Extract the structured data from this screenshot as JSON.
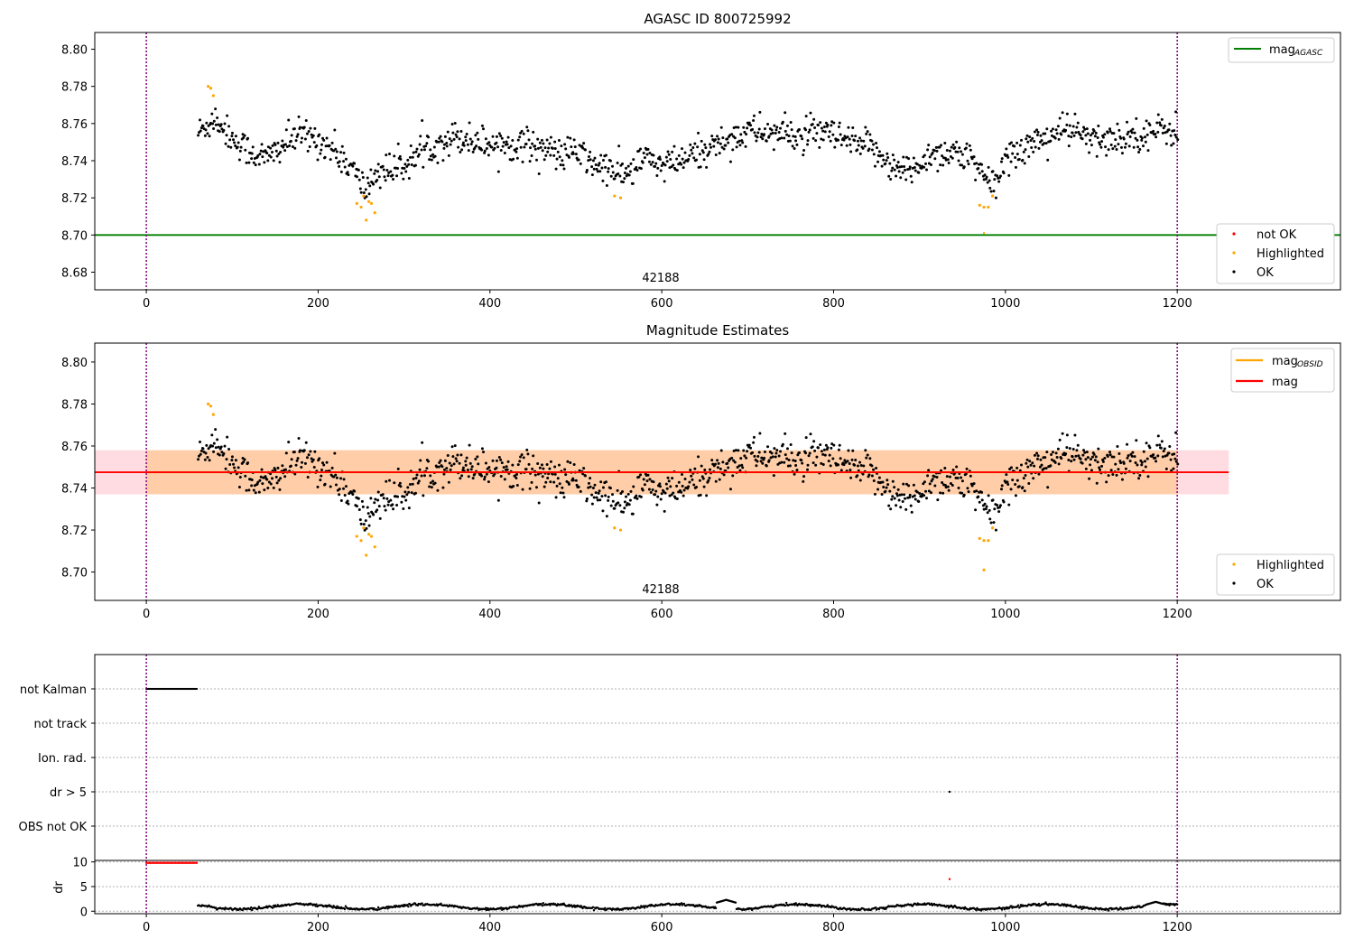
{
  "chart_data": [
    {
      "type": "scatter",
      "title": "AGASC ID 800725992",
      "xlabel": "",
      "ylabel": "",
      "xlim": [
        -60,
        1390
      ],
      "ylim": [
        8.6705,
        8.809
      ],
      "xticks": [
        0,
        200,
        400,
        600,
        800,
        1000,
        1200
      ],
      "xtick_labels": [
        "0",
        "200",
        "400",
        "600",
        "800",
        "1000",
        "1200"
      ],
      "yticks": [
        8.68,
        8.7,
        8.72,
        8.74,
        8.76,
        8.78,
        8.8
      ],
      "ytick_labels": [
        "8.68",
        "8.70",
        "8.72",
        "8.74",
        "8.76",
        "8.78",
        "8.80"
      ],
      "obsid_label": "42188",
      "obsid_label_x": 600,
      "vertical_lines_x": [
        0,
        1200
      ],
      "mag_agasc": 8.7,
      "legend_lines": [
        {
          "label": "mag",
          "sub": "AGASC",
          "color": "#008000"
        }
      ],
      "legend_points": [
        {
          "label": "not OK",
          "color": "#ff0000"
        },
        {
          "label": "Highlighted",
          "color": "#ffa500"
        },
        {
          "label": "OK",
          "color": "#000000"
        }
      ],
      "legend_placement": "upper right, lower right",
      "ok_series": {
        "name": "OK",
        "x_range": [
          60,
          1200
        ],
        "trend": [
          [
            60,
            8.755
          ],
          [
            80,
            8.763
          ],
          [
            100,
            8.752
          ],
          [
            120,
            8.745
          ],
          [
            140,
            8.741
          ],
          [
            160,
            8.749
          ],
          [
            180,
            8.754
          ],
          [
            200,
            8.751
          ],
          [
            220,
            8.745
          ],
          [
            240,
            8.735
          ],
          [
            255,
            8.724
          ],
          [
            270,
            8.735
          ],
          [
            290,
            8.735
          ],
          [
            310,
            8.741
          ],
          [
            330,
            8.748
          ],
          [
            360,
            8.753
          ],
          [
            400,
            8.749
          ],
          [
            450,
            8.749
          ],
          [
            480,
            8.743
          ],
          [
            500,
            8.745
          ],
          [
            520,
            8.738
          ],
          [
            540,
            8.735
          ],
          [
            560,
            8.732
          ],
          [
            580,
            8.742
          ],
          [
            600,
            8.737
          ],
          [
            620,
            8.739
          ],
          [
            650,
            8.746
          ],
          [
            680,
            8.752
          ],
          [
            700,
            8.756
          ],
          [
            730,
            8.755
          ],
          [
            760,
            8.753
          ],
          [
            790,
            8.755
          ],
          [
            820,
            8.749
          ],
          [
            850,
            8.746
          ],
          [
            870,
            8.736
          ],
          [
            890,
            8.734
          ],
          [
            910,
            8.743
          ],
          [
            940,
            8.745
          ],
          [
            960,
            8.74
          ],
          [
            975,
            8.73
          ],
          [
            990,
            8.728
          ],
          [
            1000,
            8.742
          ],
          [
            1030,
            8.749
          ],
          [
            1060,
            8.755
          ],
          [
            1080,
            8.757
          ],
          [
            1100,
            8.75
          ],
          [
            1130,
            8.752
          ],
          [
            1160,
            8.755
          ],
          [
            1200,
            8.757
          ]
        ],
        "scatter_sigma": 0.0055
      },
      "highlighted_points": [
        [
          72,
          8.78
        ],
        [
          75,
          8.779
        ],
        [
          78,
          8.775
        ],
        [
          245,
          8.717
        ],
        [
          250,
          8.715
        ],
        [
          253,
          8.721
        ],
        [
          256,
          8.708
        ],
        [
          259,
          8.718
        ],
        [
          262,
          8.717
        ],
        [
          266,
          8.712
        ],
        [
          545,
          8.721
        ],
        [
          552,
          8.72
        ],
        [
          970,
          8.716
        ],
        [
          975,
          8.715
        ],
        [
          980,
          8.715
        ],
        [
          985,
          8.721
        ]
      ],
      "not_ok_points": [
        [
          975,
          8.701
        ]
      ]
    },
    {
      "type": "scatter",
      "title": "Magnitude Estimates",
      "xlabel": "",
      "ylabel": "",
      "xlim": [
        -60,
        1390
      ],
      "ylim": [
        8.6865,
        8.809
      ],
      "xticks": [
        0,
        200,
        400,
        600,
        800,
        1000,
        1200
      ],
      "xtick_labels": [
        "0",
        "200",
        "400",
        "600",
        "800",
        "1000",
        "1200"
      ],
      "yticks": [
        8.7,
        8.72,
        8.74,
        8.76,
        8.78,
        8.8
      ],
      "ytick_labels": [
        "8.70",
        "8.72",
        "8.74",
        "8.76",
        "8.78",
        "8.80"
      ],
      "obsid_label": "42188",
      "obsid_label_x": 600,
      "vertical_lines_x": [
        0,
        1200
      ],
      "mag": 8.7475,
      "mag_obsid": 8.7475,
      "mag_band": [
        8.737,
        8.758
      ],
      "mag_obsid_band": [
        8.737,
        8.758
      ],
      "mag_band_x": [
        -60,
        1260
      ],
      "mag_obsid_band_x": [
        0,
        1200
      ],
      "legend_lines": [
        {
          "label": "mag",
          "sub": "OBSID",
          "color": "#ffa500"
        },
        {
          "label": "mag",
          "sub": "",
          "color": "#ff0000"
        }
      ],
      "legend_points": [
        {
          "label": "Highlighted",
          "color": "#ffa500"
        },
        {
          "label": "OK",
          "color": "#000000"
        }
      ],
      "legend_placement": "upper right, lower right",
      "same_points_as_first_panel": true
    },
    {
      "type": "scatter",
      "title": "",
      "xlim": [
        -60,
        1390
      ],
      "categories": [
        "not Kalman",
        "not track",
        "Ion. rad.",
        "dr > 5",
        "OBS not OK"
      ],
      "flags": {
        "not Kalman": {
          "x_range": [
            0,
            60
          ]
        },
        "not track": {
          "x_range": []
        },
        "Ion. rad.": {
          "x_range": []
        },
        "dr > 5": {
          "x_points": [
            935
          ]
        },
        "OBS not OK": {
          "x_range": []
        }
      },
      "vertical_lines_x": [
        0,
        1200
      ]
    },
    {
      "type": "scatter",
      "title": "",
      "xlabel": "",
      "ylabel": "dr",
      "xlim": [
        -60,
        1390
      ],
      "ylim": [
        -0.5,
        10.3
      ],
      "yticks": [
        0,
        5,
        10
      ],
      "ytick_labels": [
        "0",
        "5",
        "10"
      ],
      "xticks": [
        0,
        200,
        400,
        600,
        800,
        1000,
        1200
      ],
      "xtick_labels": [
        "0",
        "200",
        "400",
        "600",
        "800",
        "1000",
        "1200"
      ],
      "vertical_lines_x": [
        0,
        1200
      ],
      "red_points": {
        "x_range": [
          0,
          60
        ],
        "y": 9.8,
        "extra": [
          [
            935,
            6.5
          ]
        ]
      },
      "black_points": {
        "x_range": [
          60,
          1200
        ],
        "typical_y": 1.0,
        "bumps": [
          [
            175,
            1.6
          ],
          [
            675,
            2.3
          ],
          [
            1175,
            1.9
          ]
        ]
      }
    }
  ]
}
